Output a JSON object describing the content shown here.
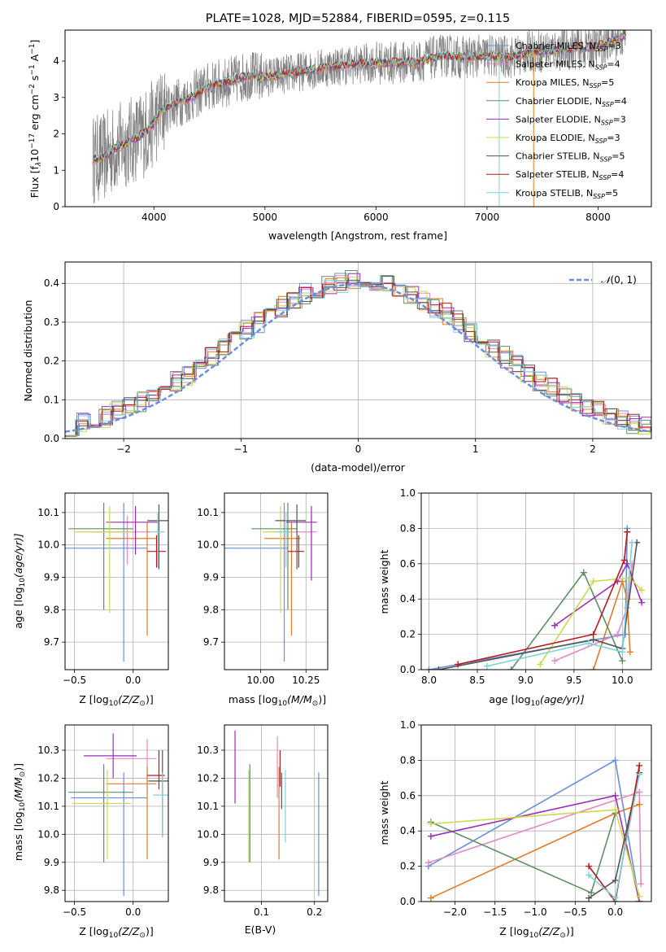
{
  "title": "PLATE=1028, MJD=52884, FIBERID=0595, z=0.115",
  "colors": [
    "#6a8fdd",
    "#e28bc4",
    "#e07b29",
    "#5e8f65",
    "#9b2eb6",
    "#ccd94d",
    "#555555",
    "#b61a1c",
    "#80d2d9"
  ],
  "labels": {
    "spec_x": "wavelength [Angstrom, rest frame]",
    "spec_y_a": "Flux [f",
    "spec_y_b": "λ",
    "spec_y_c": "10",
    "spec_y_d": "−17",
    "spec_y_e": " erg cm",
    "spec_y_f": "−2",
    "spec_y_g": " s",
    "spec_y_h": "−1",
    "spec_y_i": " A",
    "spec_y_j": "−1",
    "spec_y_k": "]",
    "hist_x": "(data-model)/error",
    "hist_y": "Normed distribution",
    "hist_leg_a": "𝒩",
    "hist_leg_b": "(0, 1)",
    "z_x_a": "Z [log",
    "z_x_b": "10",
    "z_x_c": "(Z/Z",
    "z_x_d": "⊙",
    "z_x_e": ")]",
    "mass_x_a": "mass [log",
    "mass_x_b": "10",
    "mass_x_c": "(M/M",
    "mass_x_d": "⊙",
    "mass_x_e": ")]",
    "age_y_a": "age  [log",
    "age_y_b": "10",
    "age_y_c": "(age/yr)]",
    "mass_y_a": "mass [log",
    "mass_y_b": "10",
    "mass_y_c": "(M/M",
    "mass_y_d": "⊙",
    "mass_y_e": ")]",
    "ebv_x": "E(B-V)",
    "weight_y": "mass weight",
    "agew_x_a": "age  [log",
    "agew_x_b": "10",
    "agew_x_c": "(age/yr)]",
    "zw_x_a": "Z [log",
    "zw_x_b": "10",
    "zw_x_c": "(Z/Z",
    "zw_x_d": "⊙",
    "zw_x_e": ")]"
  },
  "legend": [
    {
      "name": "Chabrier MILES",
      "n": "3"
    },
    {
      "name": "Salpeter MILES",
      "n": "4"
    },
    {
      "name": "Kroupa MILES",
      "n": "5"
    },
    {
      "name": "Chabrier ELODIE",
      "n": "4"
    },
    {
      "name": "Salpeter ELODIE",
      "n": "3"
    },
    {
      "name": "Kroupa ELODIE",
      "n": "3"
    },
    {
      "name": "Chabrier STELIB",
      "n": "5"
    },
    {
      "name": "Salpeter STELIB",
      "n": "4"
    },
    {
      "name": "Kroupa STELIB",
      "n": "5"
    }
  ],
  "legend_n_prefix": "N",
  "legend_n_sub": "SSP",
  "chart_data": [
    {
      "type": "line",
      "name": "spectrum",
      "xlim": [
        3200,
        8480
      ],
      "ylim": [
        0,
        4.85
      ],
      "xticks": [
        4000,
        5000,
        6000,
        7000,
        8000
      ],
      "yticks": [
        0,
        1,
        2,
        3,
        4
      ],
      "continuum": [
        [
          3450,
          1.3
        ],
        [
          3550,
          1.35
        ],
        [
          3650,
          1.6
        ],
        [
          3750,
          1.75
        ],
        [
          3850,
          1.9
        ],
        [
          3950,
          2.1
        ],
        [
          4050,
          2.55
        ],
        [
          4150,
          2.8
        ],
        [
          4300,
          2.95
        ],
        [
          4500,
          3.3
        ],
        [
          4700,
          3.45
        ],
        [
          4850,
          3.6
        ],
        [
          5000,
          3.55
        ],
        [
          5200,
          3.65
        ],
        [
          5400,
          3.75
        ],
        [
          5600,
          3.85
        ],
        [
          5800,
          3.9
        ],
        [
          6000,
          3.95
        ],
        [
          6200,
          3.95
        ],
        [
          6400,
          4.0
        ],
        [
          6600,
          4.15
        ],
        [
          6800,
          4.1
        ],
        [
          7000,
          4.15
        ],
        [
          7200,
          4.1
        ],
        [
          7400,
          4.25
        ],
        [
          7600,
          4.3
        ],
        [
          7800,
          4.35
        ],
        [
          8000,
          4.4
        ],
        [
          8250,
          4.7
        ]
      ],
      "lines": [
        "data",
        "Chabrier MILES",
        "Salpeter MILES",
        "Kroupa MILES",
        "Chabrier ELODIE",
        "Salpeter ELODIE",
        "Kroupa ELODIE",
        "Chabrier STELIB",
        "Salpeter STELIB",
        "Kroupa STELIB"
      ]
    },
    {
      "type": "bar",
      "name": "residual histogram",
      "xlim": [
        -2.5,
        2.5
      ],
      "ylim": [
        0,
        0.455
      ],
      "xticks": [
        -2,
        -1,
        0,
        1,
        2
      ],
      "yticks": [
        0.0,
        0.1,
        0.2,
        0.3,
        0.4
      ],
      "bin_width": 0.1,
      "series": [
        {
          "name": "Chabrier MILES",
          "offset": 0.0
        },
        {
          "name": "Salpeter MILES",
          "offset": 0.02
        },
        {
          "name": "Kroupa MILES",
          "offset": 0.04
        },
        {
          "name": "Chabrier ELODIE",
          "offset": -0.02
        },
        {
          "name": "Salpeter ELODIE",
          "offset": 0.03
        },
        {
          "name": "Kroupa ELODIE",
          "offset": -0.03
        },
        {
          "name": "Chabrier STELIB",
          "offset": 0.01
        },
        {
          "name": "Salpeter STELIB",
          "offset": -0.01
        },
        {
          "name": "Kroupa STELIB",
          "offset": 0.025
        }
      ],
      "reference": {
        "label": "N(0,1)",
        "mu": 0,
        "sigma": 1
      }
    },
    {
      "type": "scatter",
      "name": "age vs metallicity",
      "xlim": [
        -0.58,
        0.3
      ],
      "ylim": [
        9.615,
        10.16
      ],
      "xticks": [
        -0.5,
        0.0
      ],
      "xticklabels": [
        "−0.5",
        "0.0"
      ],
      "yticks": [
        9.7,
        9.8,
        9.9,
        10.0,
        10.1
      ],
      "points": [
        {
          "x": -0.08,
          "y": 9.99,
          "xerr": [
            0.5,
            0.2
          ],
          "yerr": [
            0.35,
            0.14
          ]
        },
        {
          "x": -0.05,
          "y": 10.04,
          "xerr": [
            0.3,
            0.2
          ],
          "yerr": [
            0.1,
            0.05
          ]
        },
        {
          "x": 0.12,
          "y": 10.02,
          "xerr": [
            0.35,
            0.08
          ],
          "yerr": [
            0.3,
            0.05
          ]
        },
        {
          "x": -0.25,
          "y": 10.05,
          "xerr": [
            0.3,
            0.25
          ],
          "yerr": [
            0.25,
            0.08
          ]
        },
        {
          "x": 0.02,
          "y": 10.07,
          "xerr": [
            0.25,
            0.2
          ],
          "yerr": [
            0.1,
            0.05
          ]
        },
        {
          "x": -0.2,
          "y": 10.04,
          "xerr": [
            0.3,
            0.2
          ],
          "yerr": [
            0.25,
            0.08
          ]
        },
        {
          "x": 0.22,
          "y": 10.075,
          "xerr": [
            0.1,
            0.08
          ],
          "yerr": [
            0.15,
            0.05
          ]
        },
        {
          "x": 0.2,
          "y": 9.98,
          "xerr": [
            0.08,
            0.08
          ],
          "yerr": [
            0.05,
            0.05
          ]
        },
        {
          "x": 0.21,
          "y": 10.04,
          "xerr": [
            0.06,
            0.06
          ],
          "yerr": [
            0.11,
            0.06
          ]
        }
      ]
    },
    {
      "type": "scatter",
      "name": "age vs mass",
      "xlim": [
        9.8,
        10.37
      ],
      "ylim": [
        9.615,
        10.16
      ],
      "xticks": [
        10.0,
        10.25
      ],
      "xticklabels": [
        "10.00",
        "10.25"
      ],
      "yticks": [
        9.7,
        9.8,
        9.9,
        10.0,
        10.1
      ],
      "points": [
        {
          "x": 10.13,
          "y": 9.99,
          "xerr": [
            0.35,
            0.02
          ],
          "yerr": [
            0.35,
            0.14
          ]
        },
        {
          "x": 10.28,
          "y": 10.04,
          "xerr": [
            0.15,
            0.03
          ],
          "yerr": [
            0.1,
            0.05
          ]
        },
        {
          "x": 10.17,
          "y": 10.02,
          "xerr": [
            0.15,
            0.05
          ],
          "yerr": [
            0.3,
            0.05
          ]
        },
        {
          "x": 10.15,
          "y": 10.05,
          "xerr": [
            0.2,
            0.05
          ],
          "yerr": [
            0.25,
            0.08
          ]
        },
        {
          "x": 10.28,
          "y": 10.07,
          "xerr": [
            0.14,
            0.03
          ],
          "yerr": [
            0.18,
            0.05
          ]
        },
        {
          "x": 10.11,
          "y": 10.04,
          "xerr": [
            0.1,
            0.02
          ],
          "yerr": [
            0.25,
            0.08
          ]
        },
        {
          "x": 10.2,
          "y": 10.075,
          "xerr": [
            0.12,
            0.05
          ],
          "yerr": [
            0.15,
            0.05
          ]
        },
        {
          "x": 10.21,
          "y": 9.98,
          "xerr": [
            0.06,
            0.03
          ],
          "yerr": [
            0.05,
            0.05
          ]
        },
        {
          "x": 10.14,
          "y": 10.04,
          "xerr": [
            0.06,
            0.03
          ],
          "yerr": [
            0.11,
            0.06
          ]
        }
      ]
    },
    {
      "type": "line",
      "name": "mass weight vs age",
      "xlim": [
        7.92,
        10.3
      ],
      "ylim": [
        0,
        1.0
      ],
      "xticks": [
        8.0,
        8.5,
        9.0,
        9.5,
        10.0
      ],
      "xticklabels": [
        "8.0",
        "8.5",
        "9.0",
        "9.5",
        "10.0"
      ],
      "yticks": [
        0.0,
        0.2,
        0.4,
        0.6,
        0.8,
        1.0
      ],
      "series": [
        {
          "name": "Chabrier MILES",
          "x": [
            8.0,
            10.03,
            10.05
          ],
          "y": [
            0.0,
            0.2,
            0.8
          ]
        },
        {
          "name": "Salpeter MILES",
          "x": [
            9.3,
            9.95,
            10.05,
            10.1
          ],
          "y": [
            0.05,
            0.2,
            0.35,
            0.6
          ]
        },
        {
          "name": "Kroupa MILES",
          "x": [
            9.7,
            10.0,
            10.05,
            10.08
          ],
          "y": [
            0.0,
            0.5,
            0.4,
            0.1
          ]
        },
        {
          "name": "Chabrier ELODIE",
          "x": [
            8.85,
            9.6,
            10.0
          ],
          "y": [
            0.0,
            0.55,
            0.05
          ]
        },
        {
          "name": "Salpeter ELODIE",
          "x": [
            9.3,
            9.95,
            10.05,
            10.2
          ],
          "y": [
            0.25,
            0.5,
            0.6,
            0.38
          ]
        },
        {
          "name": "Kroupa ELODIE",
          "x": [
            9.15,
            9.7,
            10.08,
            10.2
          ],
          "y": [
            0.03,
            0.5,
            0.52,
            0.45
          ]
        },
        {
          "name": "Chabrier STELIB",
          "x": [
            8.1,
            9.7,
            10.0,
            10.15
          ],
          "y": [
            0.0,
            0.17,
            0.12,
            0.72
          ]
        },
        {
          "name": "Salpeter STELIB",
          "x": [
            8.3,
            9.7,
            10.02,
            10.05
          ],
          "y": [
            0.03,
            0.2,
            0.62,
            0.78
          ]
        },
        {
          "name": "Kroupa STELIB",
          "x": [
            8.6,
            9.65,
            10.0,
            10.1
          ],
          "y": [
            0.02,
            0.15,
            0.1,
            0.72
          ]
        }
      ]
    },
    {
      "type": "scatter",
      "name": "mass vs metallicity",
      "xlim": [
        -0.58,
        0.3
      ],
      "ylim": [
        9.76,
        10.39
      ],
      "xticks": [
        -0.5,
        0.0
      ],
      "xticklabels": [
        "−0.5",
        "0.0"
      ],
      "yticks": [
        9.8,
        9.9,
        10.0,
        10.1,
        10.2,
        10.3
      ],
      "points": [
        {
          "x": -0.08,
          "y": 10.13,
          "xerr": [
            0.45,
            0.2
          ],
          "yerr": [
            0.35,
            0.09
          ]
        },
        {
          "x": 0.12,
          "y": 10.27,
          "xerr": [
            0.35,
            0.08
          ],
          "yerr": [
            0.12,
            0.07
          ]
        },
        {
          "x": 0.12,
          "y": 10.18,
          "xerr": [
            0.35,
            0.08
          ],
          "yerr": [
            0.27,
            0.06
          ]
        },
        {
          "x": -0.25,
          "y": 10.15,
          "xerr": [
            0.3,
            0.25
          ],
          "yerr": [
            0.25,
            0.1
          ]
        },
        {
          "x": -0.17,
          "y": 10.28,
          "xerr": [
            0.25,
            0.2
          ],
          "yerr": [
            0.08,
            0.08
          ]
        },
        {
          "x": -0.22,
          "y": 10.11,
          "xerr": [
            0.3,
            0.2
          ],
          "yerr": [
            0.2,
            0.12
          ]
        },
        {
          "x": 0.25,
          "y": 10.19,
          "xerr": [
            0.12,
            0.05
          ],
          "yerr": [
            0.2,
            0.11
          ]
        },
        {
          "x": 0.22,
          "y": 10.21,
          "xerr": [
            0.1,
            0.05
          ],
          "yerr": [
            0.05,
            0.09
          ]
        },
        {
          "x": 0.25,
          "y": 10.14,
          "xerr": [
            0.08,
            0.05
          ],
          "yerr": [
            0.15,
            0.08
          ]
        }
      ]
    },
    {
      "type": "scatter",
      "name": "mass vs extinction",
      "xlim": [
        0.03,
        0.225
      ],
      "ylim": [
        9.76,
        10.39
      ],
      "xticks": [
        0.1,
        0.2
      ],
      "xticklabels": [
        "0.1",
        "0.2"
      ],
      "yticks": [
        9.8,
        9.9,
        10.0,
        10.1,
        10.2,
        10.3
      ],
      "points": [
        {
          "x": 0.208,
          "y": 10.0,
          "yerr": [
            0.22,
            0.22
          ]
        },
        {
          "x": 0.13,
          "y": 10.22,
          "yerr": [
            0.09,
            0.13
          ]
        },
        {
          "x": 0.133,
          "y": 10.18,
          "yerr": [
            0.27,
            0.06
          ]
        },
        {
          "x": 0.078,
          "y": 10.07,
          "yerr": [
            0.17,
            0.18
          ]
        },
        {
          "x": 0.05,
          "y": 10.23,
          "yerr": [
            0.12,
            0.14
          ]
        },
        {
          "x": 0.076,
          "y": 10.07,
          "yerr": [
            0.17,
            0.16
          ]
        },
        {
          "x": 0.138,
          "y": 10.14,
          "yerr": [
            0.05,
            0.08
          ]
        },
        {
          "x": 0.135,
          "y": 10.21,
          "yerr": [
            0.04,
            0.09
          ]
        },
        {
          "x": 0.145,
          "y": 10.06,
          "yerr": [
            0.09,
            0.17
          ]
        }
      ]
    },
    {
      "type": "line",
      "name": "mass weight vs metallicity",
      "xlim": [
        -2.42,
        0.45
      ],
      "ylim": [
        0,
        1.0
      ],
      "xticks": [
        -2.0,
        -1.5,
        -1.0,
        -0.5,
        0.0
      ],
      "xticklabels": [
        "−2.0",
        "−1.5",
        "−1.0",
        "−0.5",
        "0.0"
      ],
      "yticks": [
        0.0,
        0.2,
        0.4,
        0.6,
        0.8,
        1.0
      ],
      "series": [
        {
          "name": "Chabrier MILES",
          "x": [
            -2.33,
            0.0,
            0.3
          ],
          "y": [
            0.2,
            0.8,
            0.0
          ]
        },
        {
          "name": "Salpeter MILES",
          "x": [
            -2.33,
            0.3,
            0.32
          ],
          "y": [
            0.22,
            0.62,
            0.1
          ]
        },
        {
          "name": "Kroupa MILES",
          "x": [
            -2.3,
            0.0,
            0.3
          ],
          "y": [
            0.02,
            0.5,
            0.55
          ]
        },
        {
          "name": "Chabrier ELODIE",
          "x": [
            -2.3,
            -0.3,
            0.0
          ],
          "y": [
            0.45,
            0.05,
            0.5
          ]
        },
        {
          "name": "Salpeter ELODIE",
          "x": [
            -2.3,
            0.0,
            0.3
          ],
          "y": [
            0.37,
            0.6,
            0.0
          ]
        },
        {
          "name": "Kroupa ELODIE",
          "x": [
            -2.3,
            0.0,
            0.3
          ],
          "y": [
            0.44,
            0.52,
            0.03
          ]
        },
        {
          "name": "Chabrier STELIB",
          "x": [
            -0.33,
            0.0,
            0.3
          ],
          "y": [
            0.02,
            0.12,
            0.73
          ]
        },
        {
          "name": "Salpeter STELIB",
          "x": [
            -0.33,
            0.0,
            0.3
          ],
          "y": [
            0.2,
            0.0,
            0.77
          ]
        },
        {
          "name": "Kroupa STELIB",
          "x": [
            -0.33,
            0.0,
            0.3
          ],
          "y": [
            0.15,
            0.02,
            0.72
          ]
        }
      ]
    }
  ]
}
